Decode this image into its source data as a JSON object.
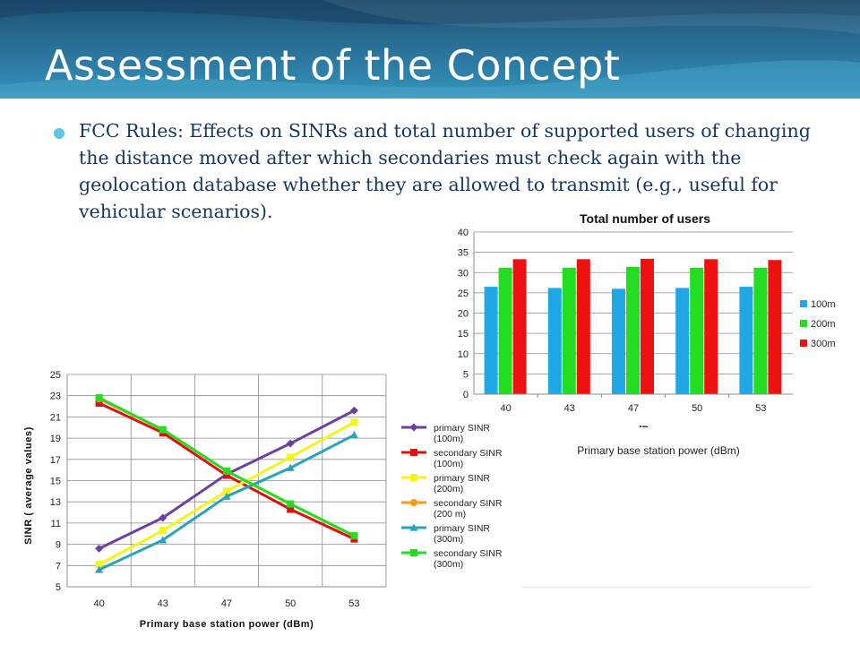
{
  "slide": {
    "title": "Assessment of the Concept",
    "bullet": "FCC Rules: Effects on SINRs and total number of supported users of changing the distance moved after which secondaries must check again with the geolocation database whether they are allowed to transmit (e.g., useful for vehicular scenarios)."
  },
  "colors": {
    "header_dark": "#1c4f73",
    "header_light": "#3a9ac0",
    "title_text": "#ffffff",
    "bullet_dot": "#5fc4e0",
    "body_text": "#17365d"
  },
  "chart_data": [
    {
      "id": "bar",
      "type": "bar",
      "title": "Total number of users",
      "xlabel": "dBm",
      "subtitle": "Primary base station power (dBm)",
      "ylabel": "",
      "categories": [
        "40",
        "43",
        "47",
        "50",
        "53"
      ],
      "ylim": [
        0,
        40
      ],
      "yticks": [
        "0",
        "5",
        "10",
        "15",
        "20",
        "25",
        "30",
        "35",
        "40"
      ],
      "grid": true,
      "legend_position": "right",
      "series": [
        {
          "name": "100m",
          "color": "#1fa7e6",
          "values": [
            26.5,
            26.2,
            26.0,
            26.2,
            26.5
          ]
        },
        {
          "name": "200m",
          "color": "#22dd22",
          "values": [
            31.2,
            31.2,
            31.4,
            31.2,
            31.2
          ]
        },
        {
          "name": "300m",
          "color": "#ee1111",
          "values": [
            33.3,
            33.3,
            33.4,
            33.3,
            33.1
          ]
        }
      ]
    },
    {
      "id": "line",
      "type": "line",
      "title": "",
      "xlabel": "Primary base station power (dBm)",
      "ylabel": "SINR ( average values)",
      "categories": [
        "40",
        "43",
        "47",
        "50",
        "53"
      ],
      "ylim": [
        5,
        25
      ],
      "yticks": [
        "5",
        "7",
        "9",
        "11",
        "13",
        "15",
        "17",
        "19",
        "21",
        "23",
        "25"
      ],
      "grid": true,
      "legend_position": "right",
      "series": [
        {
          "name": "primary SINR (100m)",
          "color": "#6f3fa0",
          "marker": "diamond",
          "values": [
            8.6,
            11.5,
            15.6,
            18.5,
            21.6
          ]
        },
        {
          "name": "secondary SINR (100m)",
          "color": "#e01010",
          "marker": "square",
          "values": [
            22.3,
            19.5,
            15.5,
            12.3,
            9.5
          ]
        },
        {
          "name": "primary SINR (200m)",
          "color": "#f4f41a",
          "marker": "square",
          "values": [
            7.1,
            10.3,
            14.0,
            17.2,
            20.5
          ]
        },
        {
          "name": "secondary SINR (200 m)",
          "color": "#f59a1a",
          "marker": "circle",
          "values": [
            22.7,
            19.8,
            15.9,
            12.8,
            9.8
          ]
        },
        {
          "name": "primary SINR (300m)",
          "color": "#2aa3b8",
          "marker": "triangle",
          "values": [
            6.6,
            9.4,
            13.5,
            16.2,
            19.3
          ]
        },
        {
          "name": "secondary SINR (300m)",
          "color": "#22dd22",
          "marker": "square",
          "values": [
            22.8,
            19.8,
            15.9,
            12.8,
            9.8
          ]
        }
      ]
    }
  ]
}
